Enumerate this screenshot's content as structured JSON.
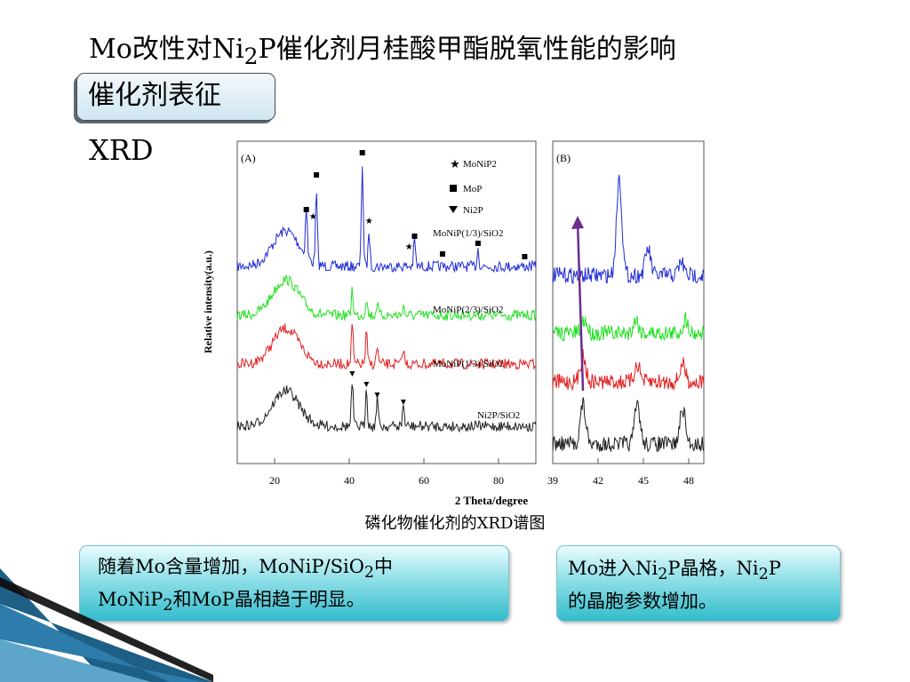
{
  "slide": {
    "title_html": "Mo改性对Ni<sub>2</sub>P催化剂月桂酸甲酯脱氧性能的影响",
    "subtitle": "催化剂表征",
    "section_label": "XRD",
    "caption": "磷化物催化剂的XRD谱图",
    "note_left_html": "随着Mo含量增加，MoNiP/SiO<sub>2</sub>中<br>MoNiP<sub>2</sub>和MoP晶相趋于明显。",
    "note_right_html": "Mo进入Ni<sub>2</sub>P晶格，Ni<sub>2</sub>P<br>的晶胞参数增加。"
  },
  "chart_data": [
    {
      "type": "line",
      "panel_label": "(A)",
      "ylabel": "Relative intensity(a.u.)",
      "xlabel": "2 Theta/degree",
      "xlim": [
        10,
        90
      ],
      "xticks": [
        20,
        40,
        60,
        80
      ],
      "series": [
        {
          "name": "MoNiP(1/3)/SiO2",
          "color": "#1f2bd6"
        },
        {
          "name": "MoNiP(2/3)/SiO2",
          "color": "#21e021"
        },
        {
          "name": "MoNiP(1/3)/SiO2",
          "color": "#e22020"
        },
        {
          "name": "Ni2P/SiO2",
          "color": "#202020"
        }
      ],
      "legend": [
        {
          "marker": "star",
          "label": "MoNiP2"
        },
        {
          "marker": "square",
          "label": "MoP"
        },
        {
          "marker": "triangle-down",
          "label": "Ni2P"
        }
      ]
    },
    {
      "type": "line",
      "panel_label": "(B)",
      "xlim": [
        39,
        49
      ],
      "xticks": [
        39,
        42,
        45,
        48
      ],
      "series_colors": [
        "#1f2bd6",
        "#21e021",
        "#e22020",
        "#202020"
      ],
      "annotation": "arrow showing peak shift",
      "arrow_color": "#6a2d8f"
    }
  ]
}
